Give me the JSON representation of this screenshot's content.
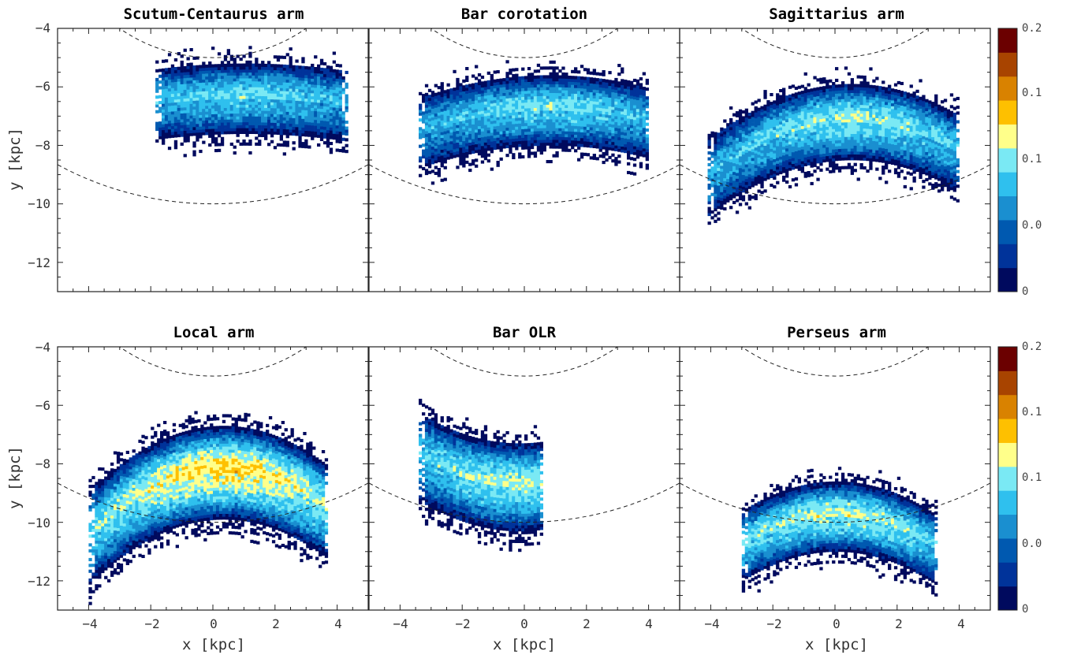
{
  "chart_data": {
    "type": "heatmap",
    "xlabel": "x [kpc]",
    "ylabel": "y [kpc]",
    "xlim": [
      -5,
      5
    ],
    "ylim": [
      -13,
      -4
    ],
    "x_ticks": [
      "−4",
      "−2",
      "0",
      "2",
      "4"
    ],
    "y_ticks": [
      "−4",
      "−6",
      "−8",
      "−10",
      "−12"
    ],
    "grid": false,
    "reference_circles_kpc": [
      5,
      10
    ],
    "colorbar": {
      "tick_labels": [
        "0",
        "0.0",
        "0.1",
        "0.1",
        "0.2"
      ],
      "colors": [
        "#000a5e",
        "#00339a",
        "#0059b0",
        "#1a8fd0",
        "#2fc0ee",
        "#7ae9f4",
        "#ffff8a",
        "#fec000",
        "#d98200",
        "#a84400",
        "#6b0000"
      ]
    },
    "panels": [
      {
        "title": "Scutum-Centaurus arm",
        "title_color": "#5bc8e6",
        "density": {
          "x_range": [
            -1.85,
            4.3
          ],
          "center_x": 1.0,
          "center_y": -6.5,
          "curvature": 0.012,
          "band_halfwidth": 1.2,
          "peak_intensity": 0.6
        }
      },
      {
        "title": "Bar corotation",
        "title_color": "#a3a3a3",
        "density": {
          "x_range": [
            -3.4,
            4.0
          ],
          "center_x": 0.8,
          "center_y": -6.9,
          "curvature": 0.022,
          "band_halfwidth": 1.2,
          "peak_intensity": 0.62
        }
      },
      {
        "title": "Sagittarius arm",
        "title_color": "#1b6fa8",
        "density": {
          "x_range": [
            -4.1,
            4.0
          ],
          "center_x": 0.5,
          "center_y": -7.3,
          "curvature": 0.045,
          "band_halfwidth": 1.3,
          "peak_intensity": 0.68
        }
      },
      {
        "title": "Local arm",
        "title_color": "#d4541b",
        "density": {
          "x_range": [
            -4.0,
            3.7
          ],
          "center_x": 0.3,
          "center_y": -8.4,
          "curvature": 0.06,
          "band_halfwidth": 1.6,
          "peak_intensity": 0.85
        }
      },
      {
        "title": "Bar OLR",
        "title_color": "#111111",
        "density": {
          "x_range": [
            -3.4,
            0.6
          ],
          "center_x": -0.2,
          "center_y": -8.9,
          "curvature": -0.05,
          "band_halfwidth": 1.5,
          "peak_intensity": 0.7
        }
      },
      {
        "title": "Perseus arm",
        "title_color": "#7d2b8a",
        "density": {
          "x_range": [
            -3.0,
            3.3
          ],
          "center_x": 0.0,
          "center_y": -9.9,
          "curvature": 0.055,
          "band_halfwidth": 1.2,
          "peak_intensity": 0.72
        }
      }
    ]
  }
}
